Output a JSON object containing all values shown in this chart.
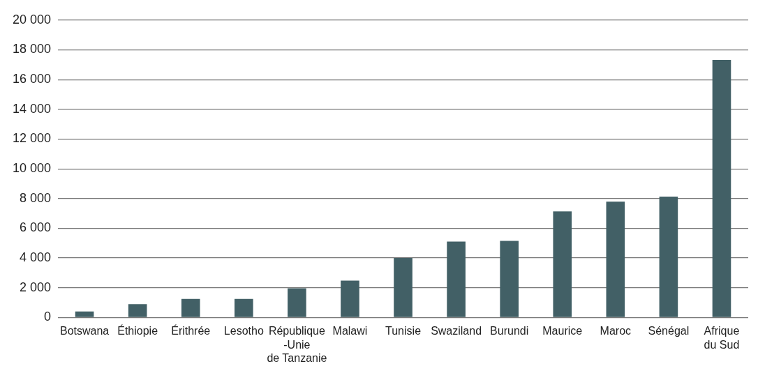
{
  "chart_data": {
    "type": "bar",
    "categories": [
      "Botswana",
      "Éthiopie",
      "Érithrée",
      "Lesotho",
      "République\n-Unie\nde Tanzanie",
      "Malawi",
      "Tunisie",
      "Swaziland",
      "Burundi",
      "Maurice",
      "Maroc",
      "Sénégal",
      "Afrique\ndu Sud"
    ],
    "series": [
      {
        "color": "#426066",
        "values": [
          400,
          900,
          1250,
          1250,
          1970,
          2480,
          4000,
          5110,
          5150,
          7130,
          7790,
          8130,
          17320
        ]
      }
    ],
    "ylim": [
      0,
      20000
    ],
    "yticks": [
      {
        "value": 0,
        "label": "0"
      },
      {
        "value": 2000,
        "label": "2 000"
      },
      {
        "value": 4000,
        "label": "4 000"
      },
      {
        "value": 6000,
        "label": "6 000"
      },
      {
        "value": 8000,
        "label": "8 000"
      },
      {
        "value": 10000,
        "label": "10 000"
      },
      {
        "value": 12000,
        "label": "12 000"
      },
      {
        "value": 14000,
        "label": "14 000"
      },
      {
        "value": 16000,
        "label": "16 000"
      },
      {
        "value": 18000,
        "label": "18 000"
      },
      {
        "value": 20000,
        "label": "20 000"
      }
    ],
    "grid": "y",
    "legend": false
  }
}
